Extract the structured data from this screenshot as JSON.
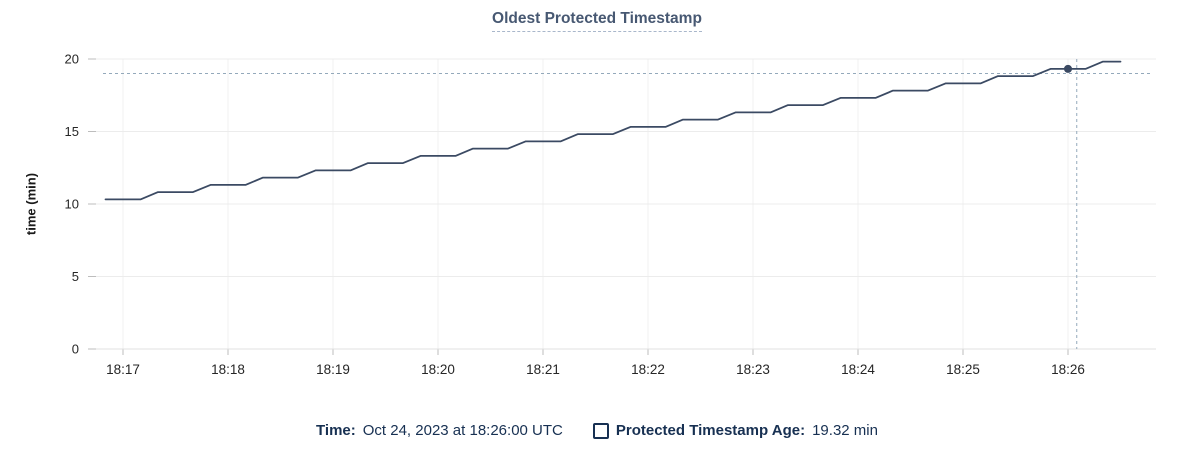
{
  "title": "Oldest Protected Timestamp",
  "y_axis": {
    "label": "time (min)"
  },
  "tooltip": {
    "time_label": "Time:",
    "time_value": "Oct 24, 2023 at 18:26:00 UTC",
    "series_label": "Protected Timestamp Age:",
    "series_value": "19.32 min"
  },
  "colors": {
    "line": "#3b4a63",
    "hover_dot": "#3b4a63",
    "crosshair": "#94a9bb",
    "gridline_h": "#ececec",
    "gridline_v": "#f1f1f1",
    "axis_line": "#e0e0e0",
    "tick": "#bdbdbd",
    "tick_label": "#262626",
    "title": "#475872",
    "title_underline": "#a9b7cb",
    "legend_text": "#173052"
  },
  "chart_data": {
    "type": "line",
    "title": "Oldest Protected Timestamp",
    "xlabel": "",
    "ylabel": "time (min)",
    "ylim": [
      0,
      20
    ],
    "y_ticks": [
      0,
      5,
      10,
      15,
      20
    ],
    "x_ticks": [
      "18:17",
      "18:18",
      "18:19",
      "18:20",
      "18:21",
      "18:22",
      "18:23",
      "18:24",
      "18:25",
      "18:26"
    ],
    "grid": true,
    "legend_position": "bottom",
    "series": [
      {
        "name": "Protected Timestamp Age",
        "unit": "min",
        "points": [
          [
            "18:16:50",
            10.32
          ],
          [
            "18:17:00",
            10.32
          ],
          [
            "18:17:10",
            10.32
          ],
          [
            "18:17:20",
            10.82
          ],
          [
            "18:17:30",
            10.82
          ],
          [
            "18:17:40",
            10.82
          ],
          [
            "18:17:50",
            11.32
          ],
          [
            "18:18:00",
            11.32
          ],
          [
            "18:18:10",
            11.32
          ],
          [
            "18:18:20",
            11.82
          ],
          [
            "18:18:30",
            11.82
          ],
          [
            "18:18:40",
            11.82
          ],
          [
            "18:18:50",
            12.32
          ],
          [
            "18:19:00",
            12.32
          ],
          [
            "18:19:10",
            12.32
          ],
          [
            "18:19:20",
            12.82
          ],
          [
            "18:19:30",
            12.82
          ],
          [
            "18:19:40",
            12.82
          ],
          [
            "18:19:50",
            13.32
          ],
          [
            "18:20:00",
            13.32
          ],
          [
            "18:20:10",
            13.32
          ],
          [
            "18:20:20",
            13.82
          ],
          [
            "18:20:30",
            13.82
          ],
          [
            "18:20:40",
            13.82
          ],
          [
            "18:20:50",
            14.32
          ],
          [
            "18:21:00",
            14.32
          ],
          [
            "18:21:10",
            14.32
          ],
          [
            "18:21:20",
            14.82
          ],
          [
            "18:21:30",
            14.82
          ],
          [
            "18:21:40",
            14.82
          ],
          [
            "18:21:50",
            15.32
          ],
          [
            "18:22:00",
            15.32
          ],
          [
            "18:22:10",
            15.32
          ],
          [
            "18:22:20",
            15.82
          ],
          [
            "18:22:30",
            15.82
          ],
          [
            "18:22:40",
            15.82
          ],
          [
            "18:22:50",
            16.32
          ],
          [
            "18:23:00",
            16.32
          ],
          [
            "18:23:10",
            16.32
          ],
          [
            "18:23:20",
            16.82
          ],
          [
            "18:23:30",
            16.82
          ],
          [
            "18:23:40",
            16.82
          ],
          [
            "18:23:50",
            17.32
          ],
          [
            "18:24:00",
            17.32
          ],
          [
            "18:24:10",
            17.32
          ],
          [
            "18:24:20",
            17.82
          ],
          [
            "18:24:30",
            17.82
          ],
          [
            "18:24:40",
            17.82
          ],
          [
            "18:24:50",
            18.32
          ],
          [
            "18:25:00",
            18.32
          ],
          [
            "18:25:10",
            18.32
          ],
          [
            "18:25:20",
            18.82
          ],
          [
            "18:25:30",
            18.82
          ],
          [
            "18:25:40",
            18.82
          ],
          [
            "18:25:50",
            19.32
          ],
          [
            "18:26:00",
            19.32
          ],
          [
            "18:26:10",
            19.32
          ],
          [
            "18:26:20",
            19.82
          ],
          [
            "18:26:30",
            19.82
          ]
        ]
      }
    ],
    "hover_point": {
      "time": "18:26:00",
      "value": 19.32
    },
    "crosshair": {
      "time": "18:26:05",
      "value": 19.0
    }
  }
}
